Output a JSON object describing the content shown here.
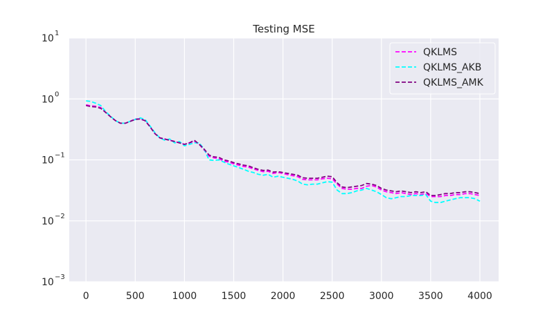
{
  "chart_data": {
    "type": "line",
    "title": "Testing MSE",
    "xlabel": "",
    "ylabel": "",
    "xlim": [
      -170,
      4190
    ],
    "ylim": [
      0.001,
      10
    ],
    "y_scale": "log",
    "grid": true,
    "legend_position": "top-right",
    "x_ticks": [
      0,
      500,
      1000,
      1500,
      2000,
      2500,
      3000,
      3500,
      4000
    ],
    "x_tick_labels": [
      "0",
      "500",
      "1000",
      "1500",
      "2000",
      "2500",
      "3000",
      "3500",
      "4000"
    ],
    "y_ticks": [
      10,
      1,
      0.1,
      0.01,
      0.001
    ],
    "y_tick_labels": [
      {
        "base": "10",
        "exp": "1"
      },
      {
        "base": "10",
        "exp": "0"
      },
      {
        "base": "10",
        "exp": "−1"
      },
      {
        "base": "10",
        "exp": "−2"
      },
      {
        "base": "10",
        "exp": "−3"
      }
    ],
    "colors": {
      "background": "#eaeaf2",
      "grid": "#ffffff",
      "text": "#262626"
    },
    "series": [
      {
        "name": "QKLMS",
        "color": "#ff00ff",
        "x": [
          0,
          50,
          100,
          150,
          200,
          250,
          300,
          350,
          400,
          450,
          500,
          550,
          600,
          650,
          700,
          750,
          800,
          850,
          900,
          950,
          1000,
          1050,
          1100,
          1150,
          1200,
          1250,
          1300,
          1350,
          1400,
          1450,
          1500,
          1550,
          1600,
          1650,
          1700,
          1750,
          1800,
          1850,
          1900,
          1950,
          2000,
          2050,
          2100,
          2150,
          2200,
          2250,
          2300,
          2350,
          2400,
          2450,
          2500,
          2550,
          2600,
          2650,
          2700,
          2750,
          2800,
          2850,
          2900,
          2950,
          3000,
          3050,
          3100,
          3150,
          3200,
          3250,
          3300,
          3350,
          3400,
          3450,
          3500,
          3550,
          3600,
          3650,
          3700,
          3750,
          3800,
          3850,
          3900,
          3950,
          4000
        ],
        "values": [
          0.8,
          0.77,
          0.76,
          0.72,
          0.6,
          0.51,
          0.44,
          0.4,
          0.4,
          0.43,
          0.47,
          0.47,
          0.44,
          0.35,
          0.27,
          0.23,
          0.22,
          0.21,
          0.2,
          0.19,
          0.18,
          0.19,
          0.2,
          0.18,
          0.145,
          0.115,
          0.108,
          0.105,
          0.095,
          0.092,
          0.086,
          0.082,
          0.078,
          0.076,
          0.071,
          0.067,
          0.064,
          0.065,
          0.06,
          0.062,
          0.06,
          0.057,
          0.055,
          0.053,
          0.048,
          0.047,
          0.047,
          0.047,
          0.049,
          0.05,
          0.049,
          0.04,
          0.034,
          0.033,
          0.033,
          0.034,
          0.034,
          0.037,
          0.038,
          0.036,
          0.032,
          0.03,
          0.029,
          0.028,
          0.029,
          0.028,
          0.027,
          0.028,
          0.027,
          0.028,
          0.025,
          0.025,
          0.025,
          0.026,
          0.026,
          0.027,
          0.027,
          0.028,
          0.028,
          0.027,
          0.026
        ]
      },
      {
        "name": "QKLMS_AKB",
        "color": "#00ffff",
        "x": [
          0,
          50,
          100,
          150,
          200,
          250,
          300,
          350,
          400,
          450,
          500,
          550,
          600,
          650,
          700,
          750,
          800,
          850,
          900,
          950,
          1000,
          1050,
          1100,
          1150,
          1200,
          1250,
          1300,
          1350,
          1400,
          1450,
          1500,
          1550,
          1600,
          1650,
          1700,
          1750,
          1800,
          1850,
          1900,
          1950,
          2000,
          2050,
          2100,
          2150,
          2200,
          2250,
          2300,
          2350,
          2400,
          2450,
          2500,
          2550,
          2600,
          2650,
          2700,
          2750,
          2800,
          2850,
          2900,
          2950,
          3000,
          3050,
          3100,
          3150,
          3200,
          3250,
          3300,
          3350,
          3400,
          3450,
          3500,
          3550,
          3600,
          3650,
          3700,
          3750,
          3800,
          3850,
          3900,
          3950,
          4000
        ],
        "values": [
          0.93,
          0.91,
          0.85,
          0.78,
          0.62,
          0.52,
          0.44,
          0.4,
          0.4,
          0.43,
          0.46,
          0.49,
          0.46,
          0.36,
          0.28,
          0.23,
          0.21,
          0.22,
          0.19,
          0.2,
          0.17,
          0.18,
          0.19,
          0.19,
          0.15,
          0.1,
          0.098,
          0.1,
          0.092,
          0.085,
          0.08,
          0.075,
          0.07,
          0.065,
          0.062,
          0.058,
          0.056,
          0.058,
          0.052,
          0.054,
          0.052,
          0.05,
          0.048,
          0.045,
          0.04,
          0.039,
          0.04,
          0.04,
          0.042,
          0.044,
          0.043,
          0.032,
          0.028,
          0.028,
          0.029,
          0.031,
          0.032,
          0.034,
          0.032,
          0.03,
          0.027,
          0.024,
          0.023,
          0.024,
          0.025,
          0.025,
          0.026,
          0.026,
          0.026,
          0.027,
          0.021,
          0.02,
          0.02,
          0.021,
          0.022,
          0.023,
          0.024,
          0.024,
          0.024,
          0.023,
          0.021
        ]
      },
      {
        "name": "QKLMS_AMK",
        "color": "#800080",
        "x": [
          0,
          50,
          100,
          150,
          200,
          250,
          300,
          350,
          400,
          450,
          500,
          550,
          600,
          650,
          700,
          750,
          800,
          850,
          900,
          950,
          1000,
          1050,
          1100,
          1150,
          1200,
          1250,
          1300,
          1350,
          1400,
          1450,
          1500,
          1550,
          1600,
          1650,
          1700,
          1750,
          1800,
          1850,
          1900,
          1950,
          2000,
          2050,
          2100,
          2150,
          2200,
          2250,
          2300,
          2350,
          2400,
          2450,
          2500,
          2550,
          2600,
          2650,
          2700,
          2750,
          2800,
          2850,
          2900,
          2950,
          3000,
          3050,
          3100,
          3150,
          3200,
          3250,
          3300,
          3350,
          3400,
          3450,
          3500,
          3550,
          3600,
          3650,
          3700,
          3750,
          3800,
          3850,
          3900,
          3950,
          4000
        ],
        "values": [
          0.78,
          0.75,
          0.74,
          0.7,
          0.6,
          0.51,
          0.44,
          0.4,
          0.4,
          0.43,
          0.46,
          0.47,
          0.44,
          0.35,
          0.27,
          0.23,
          0.22,
          0.21,
          0.2,
          0.19,
          0.18,
          0.19,
          0.21,
          0.18,
          0.15,
          0.12,
          0.112,
          0.11,
          0.1,
          0.096,
          0.09,
          0.086,
          0.082,
          0.08,
          0.074,
          0.07,
          0.067,
          0.068,
          0.063,
          0.064,
          0.062,
          0.06,
          0.058,
          0.056,
          0.051,
          0.05,
          0.05,
          0.05,
          0.052,
          0.054,
          0.053,
          0.042,
          0.036,
          0.035,
          0.036,
          0.037,
          0.038,
          0.041,
          0.04,
          0.038,
          0.034,
          0.032,
          0.031,
          0.03,
          0.031,
          0.03,
          0.029,
          0.03,
          0.029,
          0.03,
          0.026,
          0.026,
          0.027,
          0.028,
          0.028,
          0.029,
          0.029,
          0.03,
          0.03,
          0.029,
          0.028
        ]
      }
    ]
  }
}
